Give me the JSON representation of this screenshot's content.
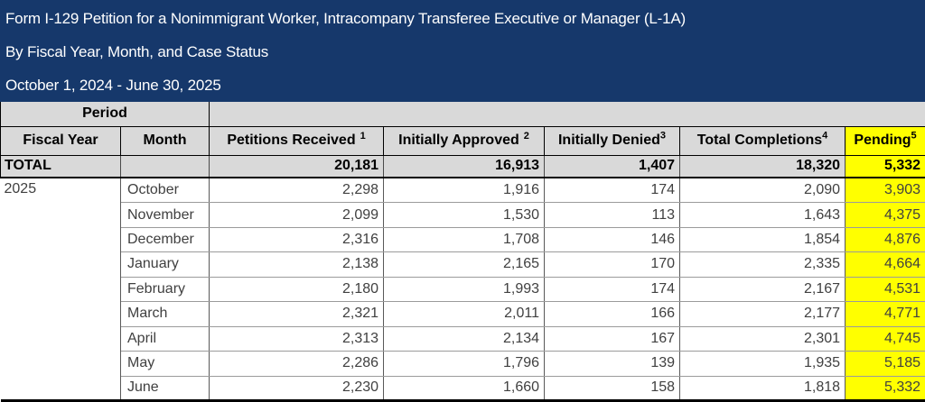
{
  "header": {
    "title": "Form I-129 Petition for a Nonimmigrant Worker, Intracompany Transferee Executive or Manager (L-1A)",
    "subtitle": "By Fiscal Year, Month, and Case Status",
    "date_range": "October 1, 2024 - June 30, 2025"
  },
  "colors": {
    "banner_navy": "#16386B",
    "header_gray": "#D9D9D9",
    "pending_yellow": "#FFFF00"
  },
  "table": {
    "period_label": "Period",
    "columns": [
      {
        "label": "Fiscal Year",
        "sup": "",
        "sup_gap": false,
        "highlight": false
      },
      {
        "label": "Month",
        "sup": "",
        "sup_gap": false,
        "highlight": false
      },
      {
        "label": "Petitions Received",
        "sup": "1",
        "sup_gap": true,
        "highlight": false
      },
      {
        "label": "Initially Approved",
        "sup": "2",
        "sup_gap": true,
        "highlight": false
      },
      {
        "label": "Initially Denied",
        "sup": "3",
        "sup_gap": false,
        "highlight": false
      },
      {
        "label": "Total Completions",
        "sup": "4",
        "sup_gap": false,
        "highlight": false
      },
      {
        "label": "Pending",
        "sup": "5",
        "sup_gap": false,
        "highlight": true
      }
    ],
    "total_row": {
      "label": "TOTAL",
      "values": [
        "20,181",
        "16,913",
        "1,407",
        "18,320",
        "5,332"
      ]
    },
    "fiscal_year": "2025",
    "rows": [
      {
        "month": "October",
        "values": [
          "2,298",
          "1,916",
          "174",
          "2,090",
          "3,903"
        ]
      },
      {
        "month": "November",
        "values": [
          "2,099",
          "1,530",
          "113",
          "1,643",
          "4,375"
        ]
      },
      {
        "month": "December",
        "values": [
          "2,316",
          "1,708",
          "146",
          "1,854",
          "4,876"
        ]
      },
      {
        "month": "January",
        "values": [
          "2,138",
          "2,165",
          "170",
          "2,335",
          "4,664"
        ]
      },
      {
        "month": "February",
        "values": [
          "2,180",
          "1,993",
          "174",
          "2,167",
          "4,531"
        ]
      },
      {
        "month": "March",
        "values": [
          "2,321",
          "2,011",
          "166",
          "2,177",
          "4,771"
        ]
      },
      {
        "month": "April",
        "values": [
          "2,313",
          "2,134",
          "167",
          "2,301",
          "4,745"
        ]
      },
      {
        "month": "May",
        "values": [
          "2,286",
          "1,796",
          "139",
          "1,935",
          "5,185"
        ]
      },
      {
        "month": "June",
        "values": [
          "2,230",
          "1,660",
          "158",
          "1,818",
          "5,332"
        ]
      }
    ]
  }
}
